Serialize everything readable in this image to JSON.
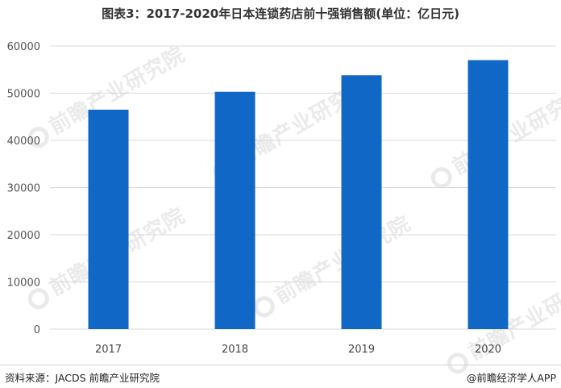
{
  "chart_data": {
    "type": "bar",
    "title": "图表3：2017-2020年日本连锁药店前十强销售额(单位：亿日元)",
    "categories": [
      "2017",
      "2018",
      "2019",
      "2020"
    ],
    "values": [
      46500,
      50300,
      53800,
      57000
    ],
    "ylim": [
      0,
      60000
    ],
    "yticks": [
      0,
      10000,
      20000,
      30000,
      40000,
      50000,
      60000
    ],
    "grid": true,
    "legend": "none",
    "bar_color": "#1167c6"
  },
  "footer": {
    "source": "资料来源：JACDS 前瞻产业研究院",
    "credit": "@前瞻经济学人APP"
  },
  "watermark": {
    "text": "前瞻产业研究院"
  }
}
